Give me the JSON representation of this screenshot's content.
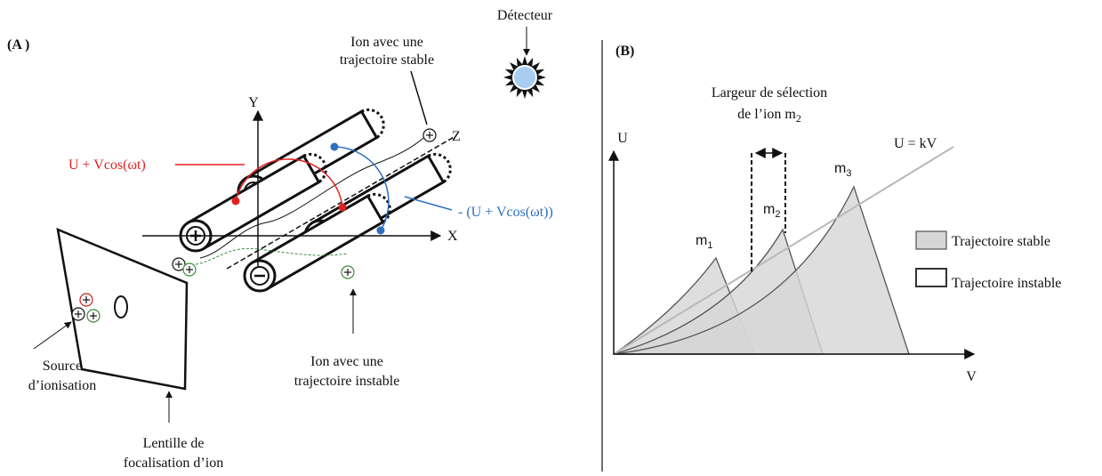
{
  "panel_a": {
    "label": "(A )",
    "detector": "Détecteur",
    "stable_ion": [
      "Ion avec une",
      "trajectoire stable"
    ],
    "axes": {
      "y": "Y",
      "z": "Z",
      "x": "X"
    },
    "voltage_positive": "U  + Vcos(ωt)",
    "voltage_negative": "-  (U  + Vcos(ωt))",
    "source": [
      "Source",
      "d’ionisation"
    ],
    "lens": [
      "Lentille de",
      "focalisation d’ion"
    ],
    "unstable_ion": [
      "Ion avec une",
      "trajectoire instable"
    ]
  },
  "panel_b": {
    "label": "(B)",
    "selection_width": {
      "line1": "Largeur de sélection",
      "line2": "de l’ion m",
      "line2_sub": "2"
    },
    "y_axis": "U",
    "x_axis": "V",
    "line_label": "U = kV",
    "peaks": [
      {
        "name": "m",
        "sub": "1"
      },
      {
        "name": "m",
        "sub": "2"
      },
      {
        "name": "m",
        "sub": "3"
      }
    ],
    "legend": [
      "Trajectoire stable",
      "Trajectoire instable"
    ]
  }
}
